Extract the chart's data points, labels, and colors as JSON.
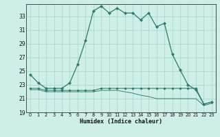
{
  "xlabel": "Humidex (Indice chaleur)",
  "bg_color": "#ceeee8",
  "grid_color": "#a8d8d0",
  "line_color": "#2a7a6a",
  "xlim": [
    -0.5,
    23.5
  ],
  "ylim": [
    19,
    34.8
  ],
  "yticks": [
    19,
    21,
    23,
    25,
    27,
    29,
    31,
    33
  ],
  "xticks": [
    0,
    1,
    2,
    3,
    4,
    5,
    6,
    7,
    8,
    9,
    10,
    11,
    12,
    13,
    14,
    15,
    16,
    17,
    18,
    19,
    20,
    21,
    22,
    23
  ],
  "series1_x": [
    0,
    1,
    2,
    3,
    4,
    5,
    6,
    7,
    8,
    9,
    10,
    11,
    12,
    13,
    14,
    15,
    16,
    17,
    18,
    19,
    20,
    21,
    22,
    23
  ],
  "series1_y": [
    24.5,
    23.3,
    22.5,
    22.5,
    22.5,
    23.3,
    26.0,
    29.5,
    33.8,
    34.5,
    33.5,
    34.2,
    33.5,
    33.5,
    32.5,
    33.5,
    31.5,
    32.0,
    27.5,
    25.2,
    23.0,
    22.3,
    20.2,
    20.5
  ],
  "series1_markers": [
    0,
    1,
    2,
    3,
    4,
    5,
    6,
    7,
    8,
    9,
    10,
    11,
    12,
    13,
    14,
    15,
    16,
    17,
    18,
    19,
    20,
    21,
    22,
    23
  ],
  "series2_x": [
    0,
    1,
    2,
    3,
    4,
    5,
    6,
    7,
    8,
    9,
    10,
    11,
    12,
    13,
    14,
    15,
    16,
    17,
    18,
    19,
    20,
    21,
    22,
    23
  ],
  "series2_y": [
    22.5,
    22.5,
    22.2,
    22.2,
    22.2,
    22.2,
    22.2,
    22.2,
    22.2,
    22.5,
    22.5,
    22.5,
    22.5,
    22.5,
    22.5,
    22.5,
    22.5,
    22.5,
    22.5,
    22.5,
    22.5,
    22.5,
    20.2,
    20.5
  ],
  "series3_x": [
    0,
    1,
    2,
    3,
    4,
    5,
    6,
    7,
    8,
    9,
    10,
    11,
    12,
    13,
    14,
    15,
    16,
    17,
    18,
    19,
    20,
    21,
    22,
    23
  ],
  "series3_y": [
    22.3,
    22.3,
    22.0,
    22.0,
    22.0,
    22.0,
    22.0,
    22.0,
    22.0,
    22.2,
    22.2,
    22.2,
    22.0,
    21.8,
    21.5,
    21.3,
    21.0,
    21.0,
    21.0,
    21.0,
    21.0,
    21.0,
    20.0,
    20.3
  ]
}
